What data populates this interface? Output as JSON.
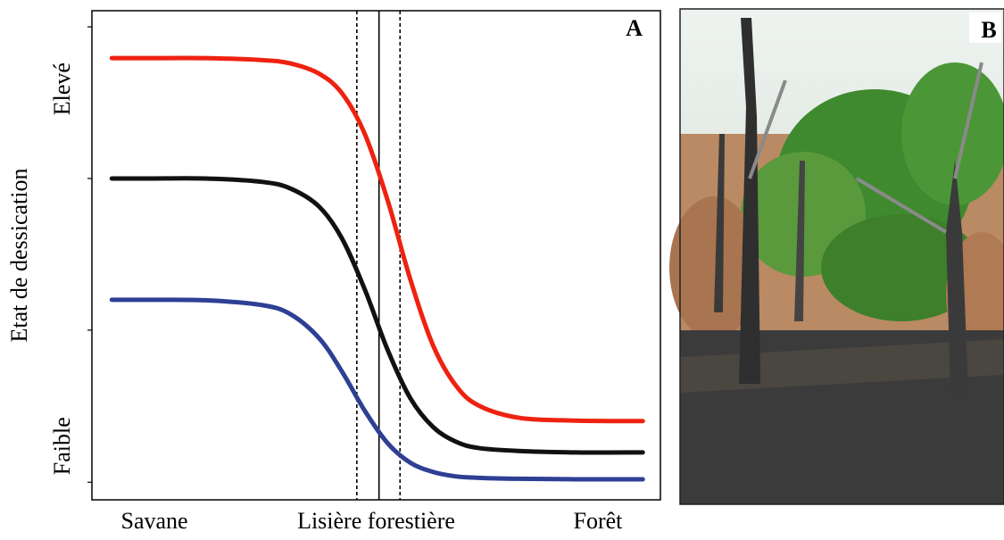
{
  "chart_data": {
    "type": "line",
    "panel_label": "A",
    "photo_label": "B",
    "ylabel": "Etat de dessication",
    "xlim": [
      0,
      100
    ],
    "ylim": [
      0,
      100
    ],
    "xticks": [
      {
        "value": 11,
        "label": "Savane"
      },
      {
        "value": 50,
        "label": "Lisière forestière"
      },
      {
        "value": 89,
        "label": "Forêt"
      }
    ],
    "yticks": [
      {
        "value": 84,
        "label": "Elevé"
      },
      {
        "value": 11,
        "label": "Faible"
      }
    ],
    "minor_yticks": [
      96.7,
      65.7,
      34.7,
      3.6
    ],
    "vlines": [
      {
        "value": 46.6,
        "dashed": true
      },
      {
        "value": 50.5,
        "dashed": false
      },
      {
        "value": 54.2,
        "dashed": true
      }
    ],
    "x": [
      3.5,
      10,
      20,
      30,
      35,
      40,
      44,
      48,
      52,
      56,
      60,
      64,
      68,
      75,
      85,
      96.9
    ],
    "series": [
      {
        "color": "#ee2211",
        "values": [
          90.3,
          90.3,
          90.3,
          89.9,
          89.2,
          87.1,
          83.1,
          74.8,
          61.3,
          45.1,
          31.6,
          23.4,
          19.3,
          16.8,
          16.2,
          16.1
        ]
      },
      {
        "color": "#111111",
        "values": [
          65.7,
          65.7,
          65.7,
          65.0,
          63.6,
          59.9,
          53.4,
          43.0,
          30.7,
          20.8,
          14.9,
          11.9,
          10.6,
          10.0,
          9.7,
          9.7
        ]
      },
      {
        "color": "#2e3f94",
        "values": [
          40.9,
          40.9,
          40.8,
          39.8,
          37.9,
          33.0,
          26.2,
          18.2,
          11.6,
          7.6,
          5.7,
          4.8,
          4.5,
          4.3,
          4.2,
          4.2
        ]
      }
    ]
  }
}
